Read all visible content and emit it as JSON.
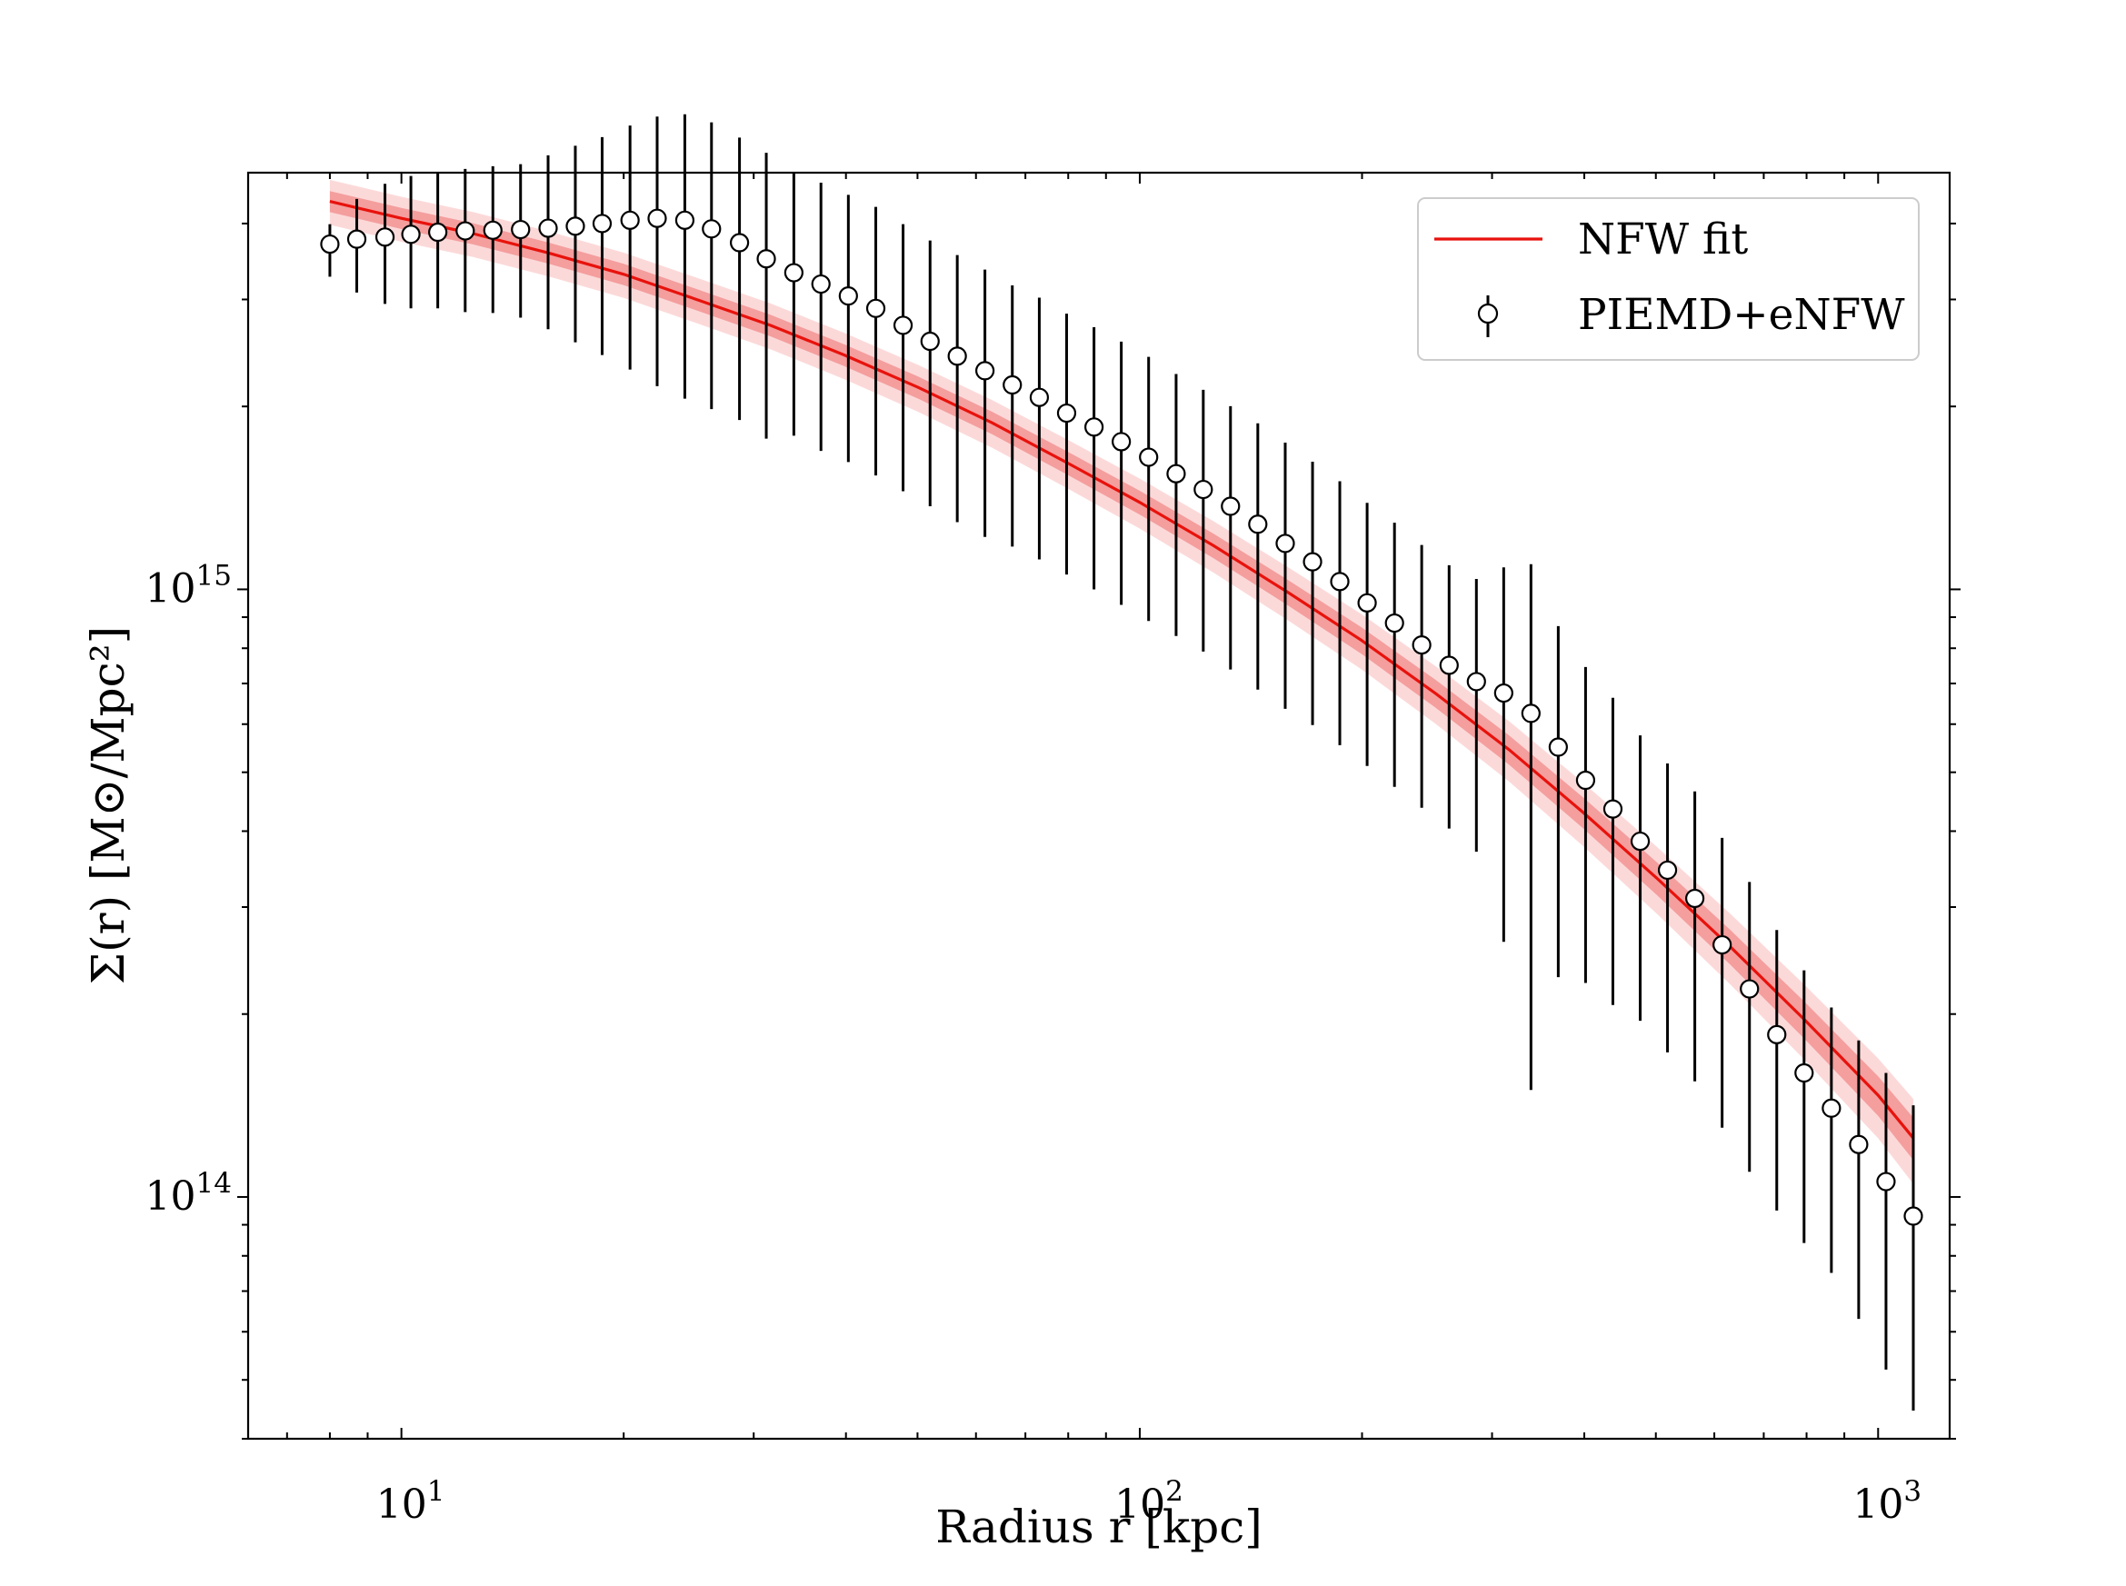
{
  "chart_data": {
    "type": "scatter",
    "title": "",
    "xlabel": "Radius r [kpc]",
    "ylabel": "Σ(r) [M⊙/Mpc²]",
    "xscale": "log",
    "yscale": "log",
    "xlim": [
      6.2,
      1250
    ],
    "ylim": [
      40000000000000.0,
      4850000000000000.0
    ],
    "x_ticks": [
      {
        "value": 10,
        "base": "10",
        "exp": "1"
      },
      {
        "value": 100,
        "base": "10",
        "exp": "2"
      },
      {
        "value": 1000,
        "base": "10",
        "exp": "3"
      }
    ],
    "y_ticks": [
      {
        "value": 100000000000000.0,
        "base": "10",
        "exp": "14"
      },
      {
        "value": 1000000000000000.0,
        "base": "10",
        "exp": "15"
      }
    ],
    "legend": {
      "placement": "top-right",
      "entries": [
        {
          "label": "NFW fit",
          "series": "NFW fit"
        },
        {
          "label": "PIEMD+eNFW",
          "series": "PIEMD+eNFW"
        }
      ]
    },
    "colors": {
      "fit": "#e8120c",
      "band_inner": "#f28a8a",
      "band_outer": "#fbd2d2",
      "points": "#000000"
    },
    "series": [
      {
        "name": "PIEMD+eNFW",
        "type": "errorbar",
        "x": [
          8.0,
          8.7,
          9.5,
          10.3,
          11.2,
          12.2,
          13.3,
          14.5,
          15.8,
          17.2,
          18.7,
          20.4,
          22.2,
          24.2,
          26.3,
          28.7,
          31.2,
          34.0,
          37.0,
          40.3,
          43.9,
          47.8,
          52.0,
          56.6,
          61.7,
          67.2,
          73.1,
          79.6,
          86.7,
          94.4,
          102.8,
          112.0,
          121.9,
          132.7,
          144.5,
          157.4,
          171.4,
          186.6,
          203.2,
          221.3,
          240.9,
          262.4,
          285.7,
          311.1,
          338.7,
          368.8,
          401.6,
          437.3,
          476.2,
          518.5,
          564.6,
          614.8,
          669.5,
          729.0,
          793.8,
          864.4,
          941.2,
          1024.9,
          1116.0
        ],
        "y": [
          3700000000000000.0,
          3770000000000000.0,
          3800000000000000.0,
          3840000000000000.0,
          3870000000000000.0,
          3890000000000000.0,
          3900000000000000.0,
          3910000000000000.0,
          3930000000000000.0,
          3960000000000000.0,
          4000000000000000.0,
          4050000000000000.0,
          4080000000000000.0,
          4050000000000000.0,
          3920000000000000.0,
          3720000000000000.0,
          3500000000000000.0,
          3320000000000000.0,
          3180000000000000.0,
          3040000000000000.0,
          2900000000000000.0,
          2720000000000000.0,
          2560000000000000.0,
          2420000000000000.0,
          2290000000000000.0,
          2170000000000000.0,
          2070000000000000.0,
          1950000000000000.0,
          1850000000000000.0,
          1750000000000000.0,
          1650000000000000.0,
          1550000000000000.0,
          1460000000000000.0,
          1370000000000000.0,
          1280000000000000.0,
          1190000000000000.0,
          1110000000000000.0,
          1030000000000000.0,
          950000000000000.0,
          880000000000000.0,
          810000000000000.0,
          750000000000000.0,
          705000000000000.0,
          675000000000000.0,
          625000000000000.0,
          550000000000000.0,
          485000000000000.0,
          435000000000000.0,
          385000000000000.0,
          345000000000000.0,
          310000000000000.0,
          260000000000000.0,
          220000000000000.0,
          185000000000000.0,
          160000000000000.0,
          140000000000000.0,
          122000000000000.0,
          106000000000000.0,
          93000000000000.0
        ],
        "yerr_lo": [
          430000000000000.0,
          690000000000000.0,
          850000000000000.0,
          940000000000000.0,
          970000000000000.0,
          1030000000000000.0,
          1050000000000000.0,
          1110000000000000.0,
          1250000000000000.0,
          1410000000000000.0,
          1570000000000000.0,
          1750000000000000.0,
          1920000000000000.0,
          1990000000000000.0,
          1940000000000000.0,
          1820000000000000.0,
          1730000000000000.0,
          1530000000000000.0,
          1490000000000000.0,
          1420000000000000.0,
          1360000000000000.0,
          1270000000000000.0,
          1190000000000000.0,
          1130000000000000.0,
          1070000000000000.0,
          994000000000000.0,
          950000000000000.0,
          892000000000000.0,
          850000000000000.0,
          807000000000000.0,
          763000000000000.0,
          712000000000000.0,
          670000000000000.0,
          632000000000000.0,
          596000000000000.0,
          554000000000000.0,
          512000000000000.0,
          476000000000000.0,
          438000000000000.0,
          407000000000000.0,
          373000000000000.0,
          346000000000000.0,
          335000000000000.0,
          412000000000000.0,
          475000000000000.0,
          320000000000000.0,
          260000000000000.0,
          228000000000000.0,
          190000000000000.0,
          172000000000000.0,
          155000000000000.0,
          130000000000000.0,
          110000000000000.0,
          90000000000000.0,
          76000000000000.0,
          65000000000000.0,
          59000000000000.0,
          54000000000000.0,
          48500000000000.0
        ],
        "yerr_hi": [
          290000000000000.0,
          620000000000000.0,
          850000000000000.0,
          950000000000000.0,
          970000000000000.0,
          1030000000000000.0,
          1070000000000000.0,
          1100000000000000.0,
          1250000000000000.0,
          1410000000000000.0,
          1550000000000000.0,
          1750000000000000.0,
          1920000000000000.0,
          2000000000000000.0,
          1950000000000000.0,
          1820000000000000.0,
          1730000000000000.0,
          1530000000000000.0,
          1490000000000000.0,
          1420000000000000.0,
          1360000000000000.0,
          1270000000000000.0,
          1190000000000000.0,
          1130000000000000.0,
          1070000000000000.0,
          994000000000000.0,
          950000000000000.0,
          892000000000000.0,
          850000000000000.0,
          807000000000000.0,
          763000000000000.0,
          712000000000000.0,
          670000000000000.0,
          632000000000000.0,
          596000000000000.0,
          554000000000000.0,
          512000000000000.0,
          476000000000000.0,
          438000000000000.0,
          407000000000000.0,
          373000000000000.0,
          346000000000000.0,
          335000000000000.0,
          412000000000000.0,
          475000000000000.0,
          320000000000000.0,
          260000000000000.0,
          228000000000000.0,
          190000000000000.0,
          172000000000000.0,
          155000000000000.0,
          130000000000000.0,
          110000000000000.0,
          90000000000000.0,
          76000000000000.0,
          65000000000000.0,
          59000000000000.0,
          54000000000000.0,
          48500000000000.0
        ]
      },
      {
        "name": "NFW fit",
        "type": "line",
        "x": [
          8.0,
          10.0,
          12.5,
          15.8,
          20.0,
          25.1,
          31.6,
          39.8,
          50.1,
          63.1,
          79.4,
          100.0,
          125.9,
          158.5,
          199.5,
          251.2,
          316.2,
          398.1,
          501.2,
          631.0,
          794.3,
          1000.0,
          1116.0
        ],
        "y": [
          4350000000000000.0,
          4080000000000000.0,
          3850000000000000.0,
          3580000000000000.0,
          3300000000000000.0,
          3000000000000000.0,
          2720000000000000.0,
          2430000000000000.0,
          2150000000000000.0,
          1880000000000000.0,
          1620000000000000.0,
          1390000000000000.0,
          1180000000000000.0,
          990000000000000.0,
          825000000000000.0,
          675000000000000.0,
          545000000000000.0,
          430000000000000.0,
          335000000000000.0,
          258000000000000.0,
          196000000000000.0,
          147000000000000.0,
          125000000000000.0
        ],
        "band_inner_frac": 0.04,
        "band_outer_frac": 0.085,
        "band_outer_frac_end": 0.16
      }
    ]
  }
}
